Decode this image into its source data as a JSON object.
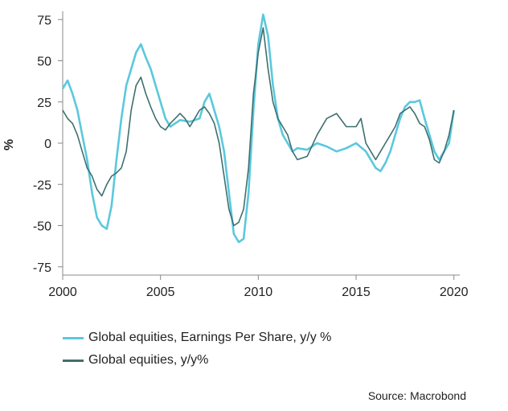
{
  "chart_data": {
    "type": "line",
    "ylabel": "%",
    "ylim": [
      -80,
      80
    ],
    "xlim": [
      2000,
      2020.3
    ],
    "y_ticks": [
      75,
      50,
      25,
      0,
      -25,
      -50,
      -75
    ],
    "x_ticks": [
      2000,
      2005,
      2010,
      2015,
      2020
    ],
    "grid": false,
    "legend_position": "bottom-left",
    "source": "Source: Macrobond",
    "series": [
      {
        "name": "Global equities, Earnings Per Share, y/y %",
        "color": "#5bc8dc",
        "x": [
          2000.0,
          2000.25,
          2000.5,
          2000.75,
          2001.0,
          2001.25,
          2001.5,
          2001.75,
          2002.0,
          2002.25,
          2002.5,
          2002.75,
          2003.0,
          2003.25,
          2003.5,
          2003.75,
          2004.0,
          2004.25,
          2004.5,
          2004.75,
          2005.0,
          2005.25,
          2005.5,
          2005.75,
          2006.0,
          2006.5,
          2007.0,
          2007.25,
          2007.5,
          2007.75,
          2008.0,
          2008.25,
          2008.5,
          2008.75,
          2009.0,
          2009.25,
          2009.5,
          2009.75,
          2010.0,
          2010.25,
          2010.5,
          2010.75,
          2011.0,
          2011.25,
          2011.5,
          2011.75,
          2012.0,
          2012.5,
          2013.0,
          2013.5,
          2014.0,
          2014.5,
          2015.0,
          2015.5,
          2016.0,
          2016.25,
          2016.5,
          2016.75,
          2017.0,
          2017.25,
          2017.5,
          2017.75,
          2018.0,
          2018.25,
          2018.5,
          2018.75,
          2019.0,
          2019.25,
          2019.5,
          2019.75,
          2020.0
        ],
        "values": [
          33,
          38,
          30,
          20,
          5,
          -10,
          -30,
          -45,
          -50,
          -52,
          -38,
          -10,
          15,
          35,
          45,
          55,
          60,
          52,
          45,
          35,
          25,
          15,
          10,
          12,
          14,
          13,
          15,
          25,
          30,
          20,
          10,
          -5,
          -30,
          -55,
          -60,
          -58,
          -30,
          20,
          60,
          78,
          65,
          35,
          15,
          5,
          0,
          -5,
          -3,
          -4,
          0,
          -2,
          -5,
          -3,
          0,
          -5,
          -15,
          -17,
          -12,
          -5,
          5,
          15,
          22,
          25,
          25,
          26,
          15,
          5,
          -5,
          -10,
          -5,
          0,
          20
        ]
      },
      {
        "name": "Global equities, y/y%",
        "color": "#3f6f6f",
        "x": [
          2000.0,
          2000.25,
          2000.5,
          2000.75,
          2001.0,
          2001.25,
          2001.5,
          2001.75,
          2002.0,
          2002.25,
          2002.5,
          2002.75,
          2003.0,
          2003.25,
          2003.5,
          2003.75,
          2004.0,
          2004.25,
          2004.5,
          2004.75,
          2005.0,
          2005.25,
          2005.5,
          2005.75,
          2006.0,
          2006.25,
          2006.5,
          2006.75,
          2007.0,
          2007.25,
          2007.5,
          2007.75,
          2008.0,
          2008.25,
          2008.5,
          2008.75,
          2009.0,
          2009.25,
          2009.5,
          2009.75,
          2010.0,
          2010.25,
          2010.5,
          2010.75,
          2011.0,
          2011.25,
          2011.5,
          2011.75,
          2012.0,
          2012.5,
          2013.0,
          2013.5,
          2014.0,
          2014.5,
          2015.0,
          2015.25,
          2015.5,
          2015.75,
          2016.0,
          2016.25,
          2016.5,
          2016.75,
          2017.0,
          2017.25,
          2017.5,
          2017.75,
          2018.0,
          2018.25,
          2018.5,
          2018.75,
          2019.0,
          2019.25,
          2019.5,
          2019.75,
          2020.0
        ],
        "values": [
          20,
          15,
          12,
          5,
          -5,
          -15,
          -20,
          -28,
          -32,
          -25,
          -20,
          -18,
          -15,
          -5,
          20,
          35,
          40,
          30,
          22,
          15,
          10,
          8,
          12,
          15,
          18,
          15,
          10,
          15,
          20,
          22,
          18,
          12,
          0,
          -20,
          -40,
          -50,
          -48,
          -40,
          -15,
          30,
          55,
          70,
          45,
          25,
          15,
          10,
          5,
          -5,
          -10,
          -8,
          5,
          15,
          18,
          10,
          10,
          15,
          0,
          -5,
          -10,
          -5,
          0,
          5,
          10,
          18,
          20,
          22,
          18,
          12,
          10,
          2,
          -10,
          -12,
          -5,
          5,
          20
        ]
      }
    ]
  },
  "legend": {
    "items": [
      {
        "label": "Global equities, Earnings Per Share, y/y %",
        "color": "#5bc8dc"
      },
      {
        "label": "Global equities, y/y%",
        "color": "#3f6f6f"
      }
    ]
  },
  "footer": {
    "source": "Source: Macrobond"
  }
}
